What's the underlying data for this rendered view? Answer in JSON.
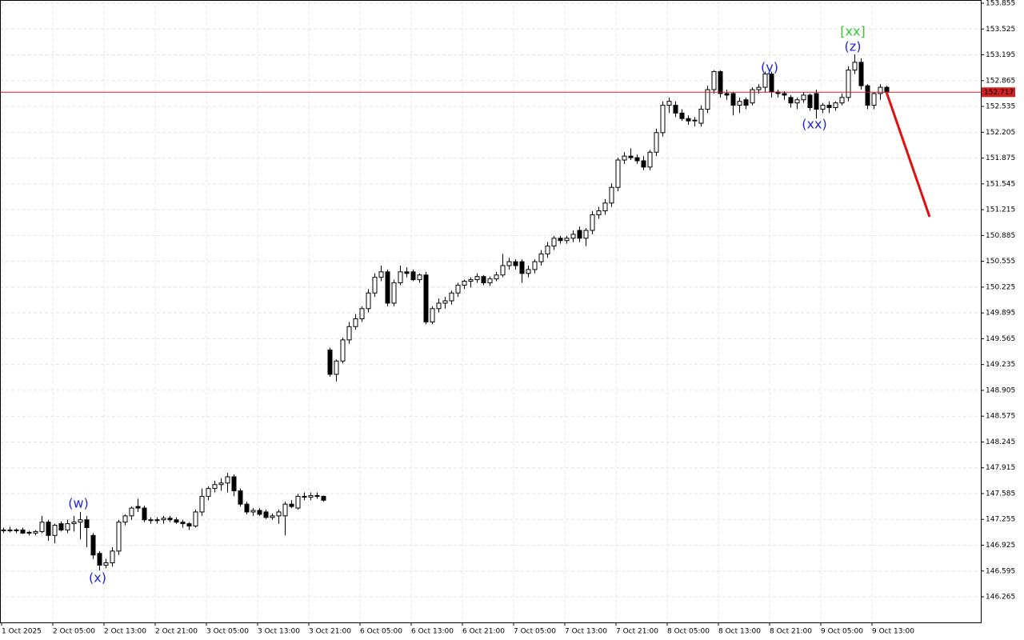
{
  "chart_data": {
    "type": "candlestick",
    "open": [
      147.12,
      147.12,
      147.11,
      147.12,
      147.08,
      147.08,
      147.1,
      147.22,
      147.05,
      147.2,
      147.12,
      147.2,
      147.22,
      147.25,
      147.05,
      146.82,
      146.67,
      146.7,
      146.85,
      147.22,
      147.3,
      147.42,
      147.4,
      147.25,
      147.24,
      147.25,
      147.27,
      147.25,
      147.22,
      147.2,
      147.17,
      147.35,
      147.55,
      147.65,
      147.7,
      147.72,
      147.8,
      147.62,
      147.45,
      147.35,
      147.37,
      147.35,
      147.28,
      147.3,
      147.3,
      147.45,
      147.4,
      147.55,
      147.54,
      147.56,
      147.55,
      149.42,
      149.11,
      149.28,
      149.55,
      149.72,
      149.82,
      149.95,
      150.15,
      150.35,
      150.42,
      150.02,
      150.28,
      150.42,
      150.42,
      150.32,
      150.38,
      149.78,
      149.95,
      150.02,
      150.05,
      150.15,
      150.25,
      150.3,
      150.32,
      150.36,
      150.28,
      150.33,
      150.38,
      150.5,
      150.55,
      150.55,
      150.4,
      150.45,
      150.55,
      150.65,
      150.75,
      150.85,
      150.82,
      150.85,
      150.95,
      150.85,
      150.95,
      151.15,
      151.2,
      151.3,
      151.5,
      151.85,
      151.9,
      151.88,
      151.84,
      151.76,
      151.95,
      152.2,
      152.55,
      152.55,
      152.45,
      152.38,
      152.35,
      152.32,
      152.5,
      152.75,
      152.98,
      152.7,
      152.7,
      152.55,
      152.62,
      152.58,
      152.75,
      152.78,
      152.95,
      152.72,
      152.7,
      152.65,
      152.58,
      152.62,
      152.68,
      152.7,
      152.5,
      152.55,
      152.52,
      152.58,
      152.65,
      153.0,
      153.1,
      152.8,
      152.55,
      152.7,
      152.78
    ],
    "high": [
      147.15,
      147.16,
      147.14,
      147.15,
      147.11,
      147.12,
      147.3,
      147.25,
      147.2,
      147.23,
      147.25,
      147.3,
      147.35,
      147.3,
      147.08,
      146.85,
      146.75,
      146.9,
      147.25,
      147.32,
      147.42,
      147.52,
      147.43,
      147.28,
      147.28,
      147.3,
      147.3,
      147.28,
      147.25,
      147.22,
      147.38,
      147.65,
      147.68,
      147.75,
      147.78,
      147.85,
      147.83,
      147.65,
      147.48,
      147.4,
      147.4,
      147.38,
      147.33,
      147.38,
      147.48,
      147.5,
      147.58,
      147.6,
      147.6,
      147.6,
      147.56,
      149.45,
      149.3,
      149.58,
      149.78,
      149.88,
      149.98,
      150.2,
      150.4,
      150.5,
      150.45,
      150.32,
      150.5,
      150.48,
      150.45,
      150.4,
      150.42,
      149.98,
      150.08,
      150.1,
      150.18,
      150.28,
      150.32,
      150.35,
      150.4,
      150.38,
      150.36,
      150.42,
      150.65,
      150.6,
      150.58,
      150.58,
      150.5,
      150.58,
      150.7,
      150.8,
      150.88,
      150.88,
      150.88,
      150.95,
      151.0,
      150.98,
      151.2,
      151.25,
      151.35,
      151.55,
      151.88,
      151.95,
      152.0,
      151.92,
      151.9,
      151.98,
      152.25,
      152.6,
      152.65,
      152.6,
      152.5,
      152.42,
      152.4,
      152.55,
      152.8,
      153.0,
      153.0,
      152.75,
      152.72,
      152.65,
      152.65,
      152.78,
      152.82,
      152.98,
      152.98,
      152.75,
      152.73,
      152.68,
      152.65,
      152.72,
      152.7,
      152.75,
      152.58,
      152.6,
      152.6,
      152.7,
      153.05,
      153.2,
      153.15,
      152.82,
      152.72,
      152.82,
      152.8
    ],
    "low": [
      147.08,
      147.09,
      147.08,
      147.07,
      147.05,
      147.05,
      147.08,
      146.98,
      146.95,
      147.1,
      147.08,
      147.1,
      147.0,
      146.9,
      146.75,
      146.6,
      146.63,
      146.65,
      146.8,
      147.18,
      147.25,
      147.35,
      147.22,
      147.2,
      147.2,
      147.2,
      147.22,
      147.2,
      147.15,
      147.12,
      147.15,
      147.3,
      147.5,
      147.6,
      147.62,
      147.6,
      147.55,
      147.42,
      147.32,
      147.3,
      147.3,
      147.26,
      147.25,
      147.2,
      147.05,
      147.4,
      147.38,
      147.5,
      147.5,
      147.52,
      147.48,
      149.08,
      149.02,
      149.25,
      149.5,
      149.68,
      149.78,
      149.9,
      150.1,
      150.3,
      149.98,
      149.98,
      150.25,
      150.35,
      150.3,
      150.28,
      149.75,
      149.75,
      149.9,
      149.95,
      150.0,
      150.1,
      150.2,
      150.22,
      150.28,
      150.25,
      150.24,
      150.3,
      150.35,
      150.45,
      150.45,
      150.28,
      150.35,
      150.4,
      150.5,
      150.6,
      150.7,
      150.78,
      150.78,
      150.8,
      150.8,
      150.75,
      150.9,
      151.1,
      151.15,
      151.25,
      151.45,
      151.8,
      151.85,
      151.8,
      151.72,
      151.72,
      151.9,
      152.15,
      152.45,
      152.4,
      152.35,
      152.3,
      152.28,
      152.28,
      152.45,
      152.7,
      152.65,
      152.62,
      152.42,
      152.45,
      152.5,
      152.55,
      152.7,
      152.72,
      152.65,
      152.65,
      152.62,
      152.52,
      152.5,
      152.58,
      152.48,
      152.38,
      152.45,
      152.45,
      152.48,
      152.55,
      152.6,
      152.95,
      152.75,
      152.5,
      152.5,
      152.62,
      152.68
    ],
    "close": [
      147.12,
      147.11,
      147.12,
      147.08,
      147.09,
      147.1,
      147.22,
      147.05,
      147.18,
      147.12,
      147.2,
      147.22,
      147.25,
      147.15,
      146.8,
      146.67,
      146.7,
      146.85,
      147.22,
      147.3,
      147.4,
      147.4,
      147.25,
      147.24,
      147.25,
      147.27,
      147.25,
      147.22,
      147.2,
      147.17,
      147.35,
      147.55,
      147.65,
      147.7,
      147.72,
      147.8,
      147.62,
      147.45,
      147.35,
      147.37,
      147.32,
      147.28,
      147.3,
      147.35,
      147.45,
      147.42,
      147.55,
      147.54,
      147.56,
      147.55,
      147.5,
      149.11,
      149.28,
      149.55,
      149.72,
      149.82,
      149.95,
      150.15,
      150.35,
      150.42,
      150.02,
      150.28,
      150.42,
      150.4,
      150.32,
      150.38,
      149.78,
      149.95,
      150.02,
      150.05,
      150.15,
      150.25,
      150.3,
      150.32,
      150.36,
      150.28,
      150.33,
      150.38,
      150.5,
      150.55,
      150.5,
      150.4,
      150.45,
      150.55,
      150.65,
      150.75,
      150.85,
      150.82,
      150.85,
      150.9,
      150.85,
      150.95,
      151.15,
      151.2,
      151.3,
      151.5,
      151.85,
      151.9,
      151.88,
      151.84,
      151.76,
      151.95,
      152.2,
      152.55,
      152.6,
      152.45,
      152.38,
      152.35,
      152.36,
      152.5,
      152.75,
      152.98,
      152.7,
      152.68,
      152.55,
      152.6,
      152.55,
      152.75,
      152.78,
      152.95,
      152.72,
      152.7,
      152.68,
      152.58,
      152.62,
      152.68,
      152.52,
      152.5,
      152.55,
      152.52,
      152.58,
      152.65,
      153.0,
      153.1,
      152.8,
      152.55,
      152.7,
      152.78,
      152.717
    ],
    "current_price": 152.717,
    "ylim": [
      145.938,
      153.896
    ],
    "yticks": [
      153.855,
      153.525,
      153.195,
      152.865,
      152.535,
      152.205,
      151.875,
      151.545,
      151.215,
      150.885,
      150.555,
      150.225,
      149.895,
      149.565,
      149.235,
      148.905,
      148.575,
      148.245,
      147.915,
      147.585,
      147.255,
      146.925,
      146.595,
      146.265
    ],
    "xticks": [
      {
        "value": 0,
        "label": "1 Oct 2025"
      },
      {
        "value": 8,
        "label": "2 Oct 05:00"
      },
      {
        "value": 16,
        "label": "2 Oct 13:00"
      },
      {
        "value": 24,
        "label": "2 Oct 21:00"
      },
      {
        "value": 32,
        "label": "3 Oct 05:00"
      },
      {
        "value": 40,
        "label": "3 Oct 13:00"
      },
      {
        "value": 48,
        "label": "3 Oct 21:00"
      },
      {
        "value": 56,
        "label": "6 Oct 05:00"
      },
      {
        "value": 64,
        "label": "6 Oct 13:00"
      },
      {
        "value": 72,
        "label": "6 Oct 21:00"
      },
      {
        "value": 80,
        "label": "7 Oct 05:00"
      },
      {
        "value": 88,
        "label": "7 Oct 13:00"
      },
      {
        "value": 96,
        "label": "7 Oct 21:00"
      },
      {
        "value": 104,
        "label": "8 Oct 05:00"
      },
      {
        "value": 112,
        "label": "8 Oct 13:00"
      },
      {
        "value": 120,
        "label": "8 Oct 21:00"
      },
      {
        "value": 128,
        "label": "9 Oct 05:00"
      },
      {
        "value": 136,
        "label": "9 Oct 13:00"
      }
    ],
    "grid": true,
    "annotations": [
      {
        "text": "(w)",
        "color": "#2323d8"
      },
      {
        "text": "(x)",
        "color": "#2323d8"
      },
      {
        "text": "(y)",
        "color": "#2323d8"
      },
      {
        "text": "(xx)",
        "color": "#2323d8"
      },
      {
        "text": "[xx]",
        "color": "#2ecc2e"
      },
      {
        "text": "(z)",
        "color": "#2323d8"
      }
    ]
  }
}
